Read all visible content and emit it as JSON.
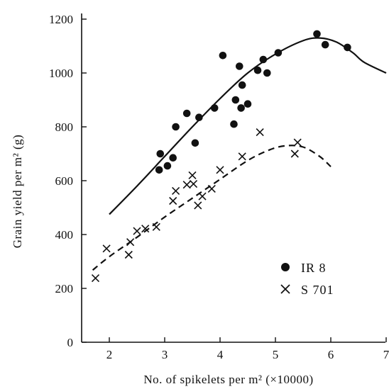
{
  "chart_data": {
    "type": "scatter",
    "title": "",
    "xlabel": "No. of spikelets per m² (×10000)",
    "ylabel": "Grain yield per m² (g)",
    "xlim": [
      1.5,
      7
    ],
    "ylim": [
      0,
      1200
    ],
    "x_ticks": [
      2,
      3,
      4,
      5,
      6,
      7
    ],
    "y_ticks": [
      0,
      200,
      400,
      600,
      800,
      1000,
      1200
    ],
    "grid": false,
    "legend_position": "lower-right",
    "series": [
      {
        "name": "IR 8",
        "marker": "filled-circle",
        "line_style": "solid",
        "points": [
          [
            2.9,
            640
          ],
          [
            2.92,
            700
          ],
          [
            3.05,
            655
          ],
          [
            3.15,
            685
          ],
          [
            3.2,
            800
          ],
          [
            3.4,
            850
          ],
          [
            3.55,
            740
          ],
          [
            3.62,
            835
          ],
          [
            3.9,
            870
          ],
          [
            4.05,
            1065
          ],
          [
            4.25,
            810
          ],
          [
            4.28,
            900
          ],
          [
            4.35,
            1025
          ],
          [
            4.38,
            870
          ],
          [
            4.4,
            955
          ],
          [
            4.5,
            885
          ],
          [
            4.68,
            1010
          ],
          [
            4.78,
            1050
          ],
          [
            4.85,
            1000
          ],
          [
            5.05,
            1075
          ],
          [
            5.75,
            1145
          ],
          [
            5.9,
            1105
          ],
          [
            6.3,
            1095
          ]
        ],
        "curve": [
          [
            2.0,
            475
          ],
          [
            2.5,
            580
          ],
          [
            3.0,
            690
          ],
          [
            3.5,
            800
          ],
          [
            4.0,
            905
          ],
          [
            4.5,
            1000
          ],
          [
            5.0,
            1070
          ],
          [
            5.5,
            1120
          ],
          [
            5.8,
            1130
          ],
          [
            6.1,
            1115
          ],
          [
            6.4,
            1075
          ],
          [
            6.6,
            1040
          ],
          [
            7.0,
            1000
          ]
        ]
      },
      {
        "name": "S 701",
        "marker": "cross",
        "line_style": "dashed",
        "points": [
          [
            1.75,
            238
          ],
          [
            1.95,
            348
          ],
          [
            2.35,
            325
          ],
          [
            2.38,
            372
          ],
          [
            2.5,
            413
          ],
          [
            2.65,
            422
          ],
          [
            2.85,
            428
          ],
          [
            3.15,
            525
          ],
          [
            3.2,
            562
          ],
          [
            3.4,
            585
          ],
          [
            3.5,
            620
          ],
          [
            3.52,
            588
          ],
          [
            3.6,
            508
          ],
          [
            3.68,
            542
          ],
          [
            3.85,
            570
          ],
          [
            4.0,
            640
          ],
          [
            4.4,
            690
          ],
          [
            4.72,
            780
          ],
          [
            5.35,
            700
          ],
          [
            5.4,
            742
          ]
        ],
        "curve": [
          [
            1.7,
            268
          ],
          [
            2.0,
            318
          ],
          [
            2.5,
            390
          ],
          [
            3.0,
            465
          ],
          [
            3.5,
            535
          ],
          [
            4.0,
            605
          ],
          [
            4.5,
            675
          ],
          [
            4.9,
            715
          ],
          [
            5.2,
            730
          ],
          [
            5.5,
            725
          ],
          [
            5.8,
            690
          ],
          [
            6.0,
            652
          ]
        ]
      }
    ]
  }
}
